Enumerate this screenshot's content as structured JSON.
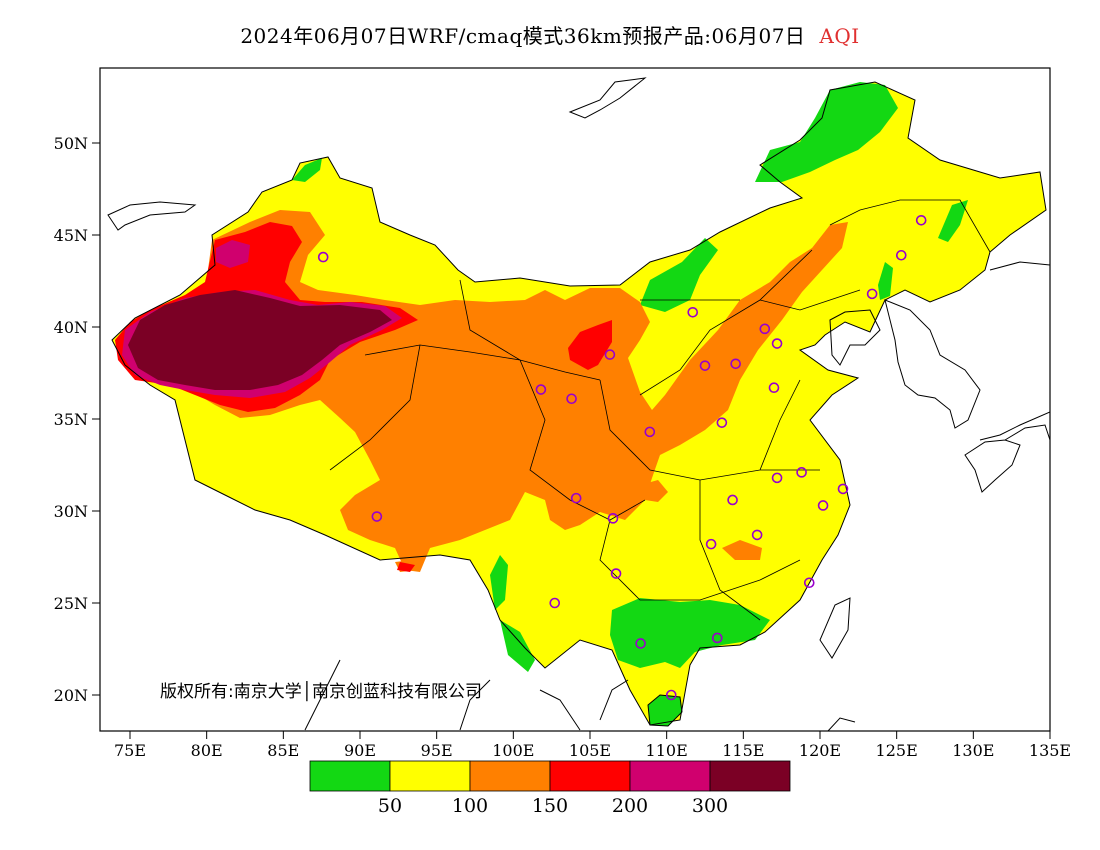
{
  "title": {
    "main": "2024年06月07日WRF/cmaq模式36km预报产品:06月07日",
    "variable": "AQI"
  },
  "map": {
    "region": "China",
    "variable": "AQI",
    "lon_range": [
      73,
      135
    ],
    "lat_range": [
      18,
      54
    ],
    "x_ticks": [
      "75E",
      "80E",
      "85E",
      "90E",
      "95E",
      "100E",
      "105E",
      "110E",
      "115E",
      "120E",
      "125E",
      "130E",
      "135E"
    ],
    "x_tick_values": [
      75,
      80,
      85,
      90,
      95,
      100,
      105,
      110,
      115,
      120,
      125,
      130,
      135
    ],
    "y_ticks": [
      "50N",
      "45N",
      "40N",
      "35N",
      "30N",
      "25N",
      "20N"
    ],
    "y_tick_values": [
      50,
      45,
      40,
      35,
      30,
      25,
      20
    ],
    "copyright": "版权所有:南京大学│南京创蓝科技有限公司",
    "levels": [
      {
        "max": 50,
        "color": "#13d813"
      },
      {
        "max": 100,
        "color": "#ffff00"
      },
      {
        "max": 150,
        "color": "#ff8000"
      },
      {
        "max": 200,
        "color": "#ff0000"
      },
      {
        "max": 300,
        "color": "#d0006e"
      },
      {
        "max": null,
        "color": "#7b0025"
      }
    ],
    "legend_labels": [
      "50",
      "100",
      "150",
      "200",
      "300"
    ],
    "station_color": "#9900cc",
    "stations": [
      {
        "lon": 87.6,
        "lat": 43.8
      },
      {
        "lon": 91.1,
        "lat": 29.7
      },
      {
        "lon": 101.8,
        "lat": 36.6
      },
      {
        "lon": 103.8,
        "lat": 36.1
      },
      {
        "lon": 106.3,
        "lat": 38.5
      },
      {
        "lon": 104.1,
        "lat": 30.7
      },
      {
        "lon": 106.5,
        "lat": 29.6
      },
      {
        "lon": 106.7,
        "lat": 26.6
      },
      {
        "lon": 102.7,
        "lat": 25.0
      },
      {
        "lon": 108.3,
        "lat": 22.8
      },
      {
        "lon": 110.3,
        "lat": 20.0
      },
      {
        "lon": 113.3,
        "lat": 23.1
      },
      {
        "lon": 108.9,
        "lat": 34.3
      },
      {
        "lon": 111.7,
        "lat": 40.8
      },
      {
        "lon": 112.5,
        "lat": 37.9
      },
      {
        "lon": 114.5,
        "lat": 38.0
      },
      {
        "lon": 113.6,
        "lat": 34.8
      },
      {
        "lon": 114.3,
        "lat": 30.6
      },
      {
        "lon": 112.9,
        "lat": 28.2
      },
      {
        "lon": 115.9,
        "lat": 28.7
      },
      {
        "lon": 117.2,
        "lat": 31.8
      },
      {
        "lon": 118.8,
        "lat": 32.1
      },
      {
        "lon": 120.2,
        "lat": 30.3
      },
      {
        "lon": 121.5,
        "lat": 31.2
      },
      {
        "lon": 119.3,
        "lat": 26.1
      },
      {
        "lon": 117.0,
        "lat": 36.7
      },
      {
        "lon": 116.4,
        "lat": 39.9
      },
      {
        "lon": 117.2,
        "lat": 39.1
      },
      {
        "lon": 123.4,
        "lat": 41.8
      },
      {
        "lon": 125.3,
        "lat": 43.9
      },
      {
        "lon": 126.6,
        "lat": 45.8
      }
    ]
  }
}
